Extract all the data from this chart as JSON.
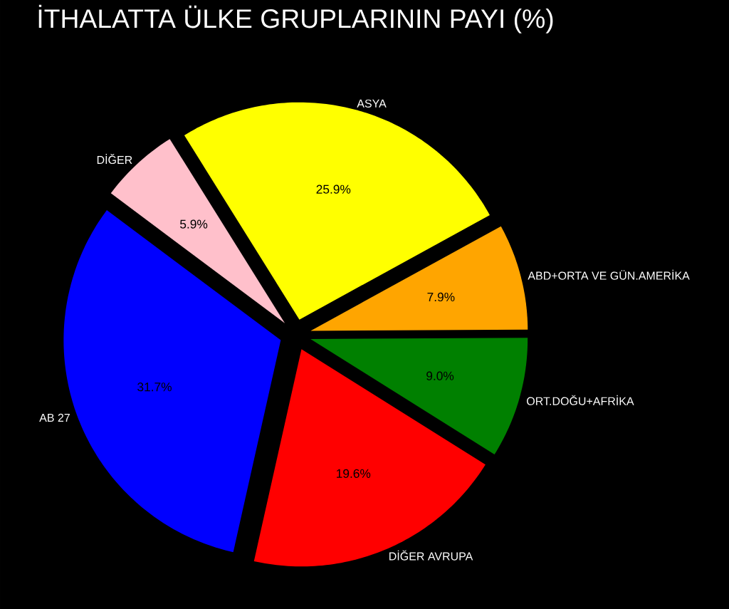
{
  "chart_data": {
    "type": "pie",
    "title": "İTHALATTA ÜLKE GRUPLARININ PAYI (%)",
    "categories": [
      "ASYA",
      "ABD+ORTA VE GÜN.AMERİKA",
      "ORT.DOĞU+AFRİKA",
      "DİĞER AVRUPA",
      "AB 27",
      "DİĞER"
    ],
    "values": [
      25.9,
      7.9,
      9.0,
      19.6,
      31.7,
      5.9
    ],
    "colors": [
      "#ffff00",
      "#ffa500",
      "#008000",
      "#ff0000",
      "#0000ff",
      "#ffc0cb"
    ],
    "value_labels": [
      "25.9%",
      "7.9%",
      "9.0%",
      "19.6%",
      "31.7%",
      "5.9%"
    ]
  }
}
